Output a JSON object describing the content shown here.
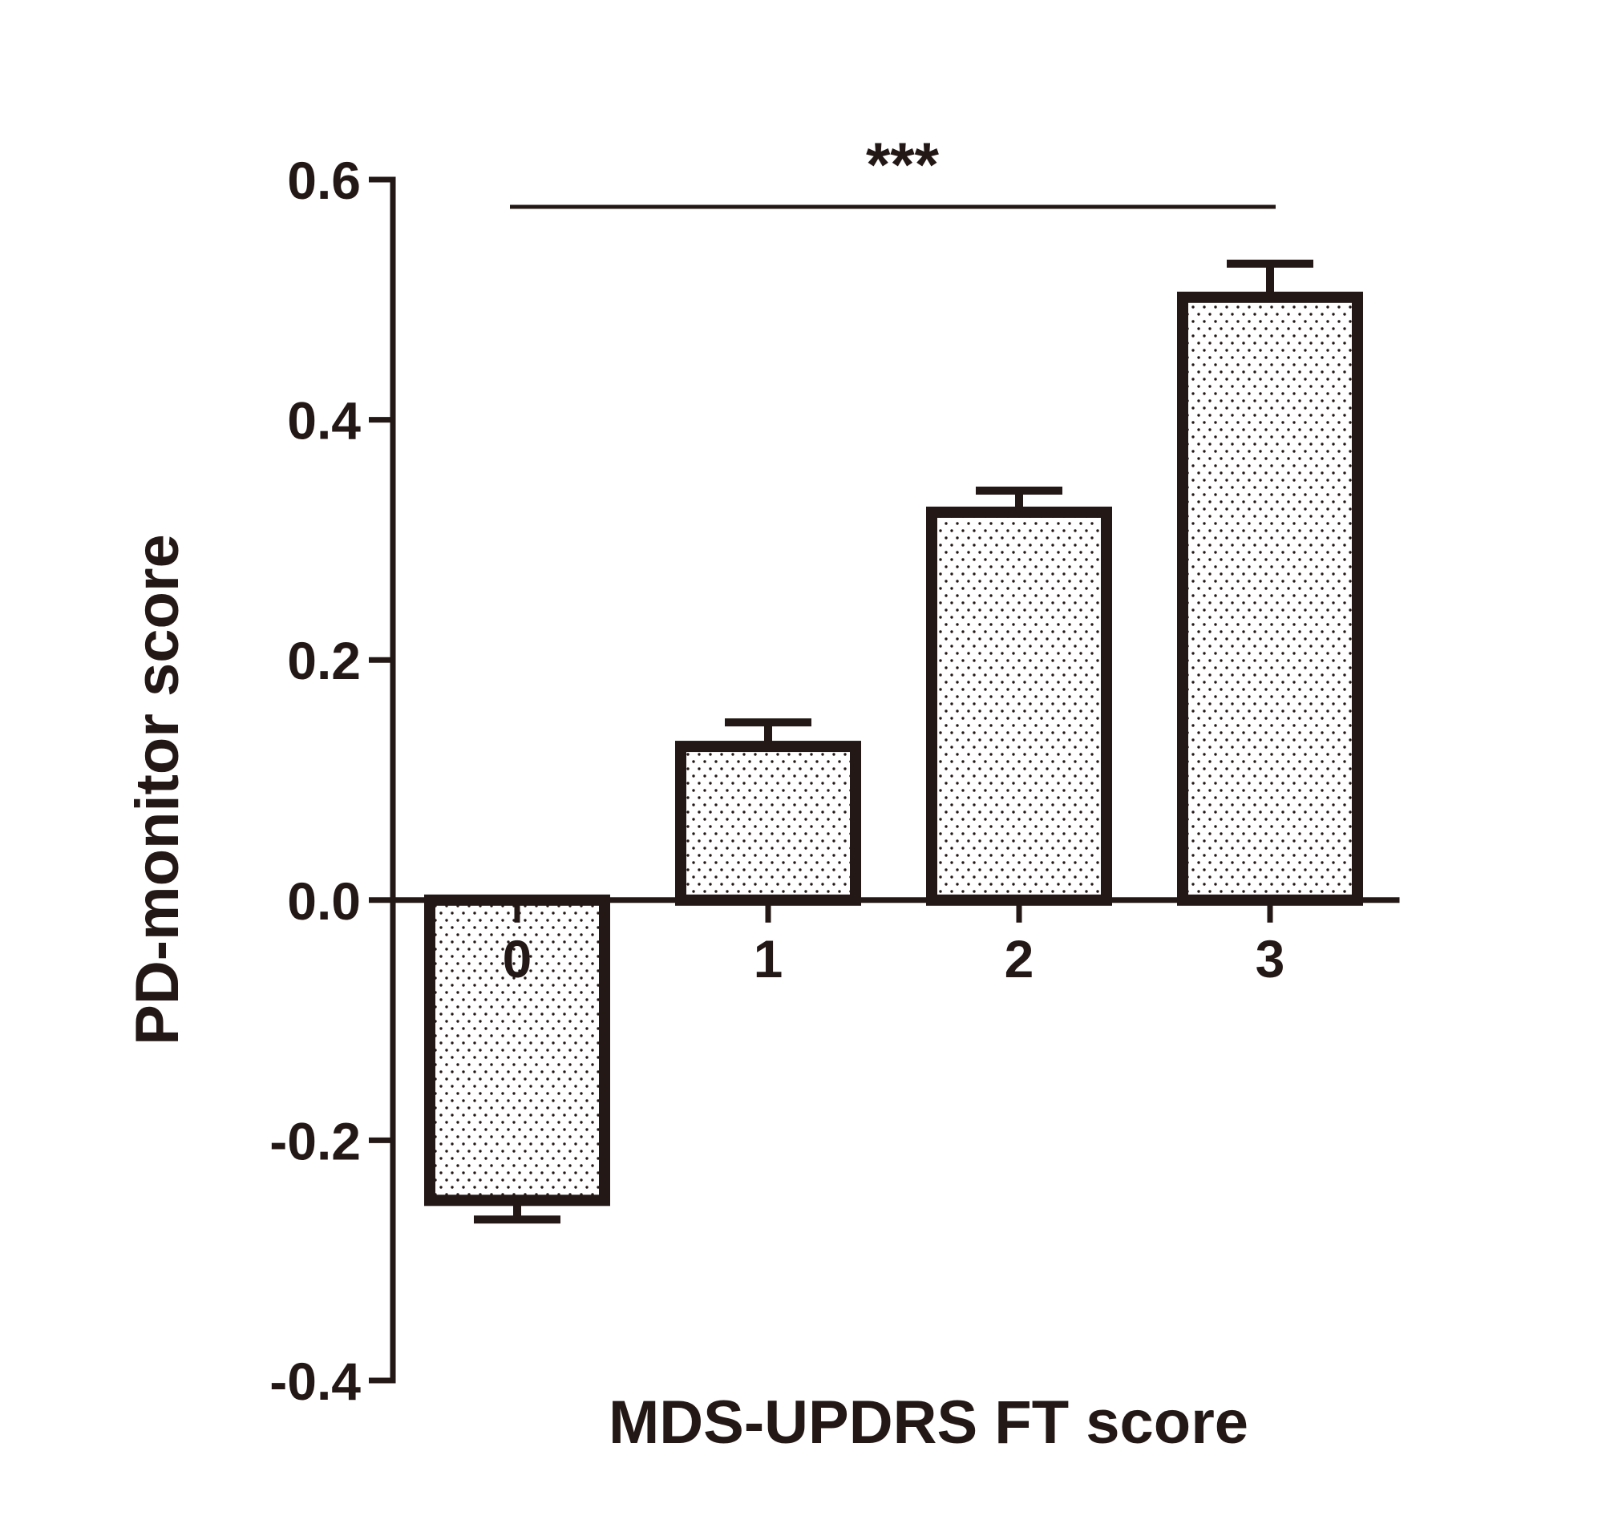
{
  "chart_data": {
    "type": "bar",
    "title": "",
    "xlabel": "MDS-UPDRS FT score",
    "ylabel": "PD-monitor score",
    "categories": [
      "0",
      "1",
      "2",
      "3"
    ],
    "values": [
      -0.25,
      0.128,
      0.323,
      0.502
    ],
    "error": [
      0.016,
      0.02,
      0.018,
      0.028
    ],
    "ylim": [
      -0.4,
      0.6
    ],
    "yticks": [
      0.6,
      0.4,
      0.2,
      0.0,
      -0.2,
      -0.4
    ],
    "ytick_labels": [
      "0.6",
      "0.4",
      "0.2",
      "0.0",
      "-0.2",
      "-0.4"
    ],
    "grid": false,
    "fill_pattern": "dots",
    "significance": {
      "label": "***",
      "from": "0",
      "to": "3"
    },
    "colors": {
      "ink": "#231815",
      "fill": "#ffffff"
    }
  }
}
